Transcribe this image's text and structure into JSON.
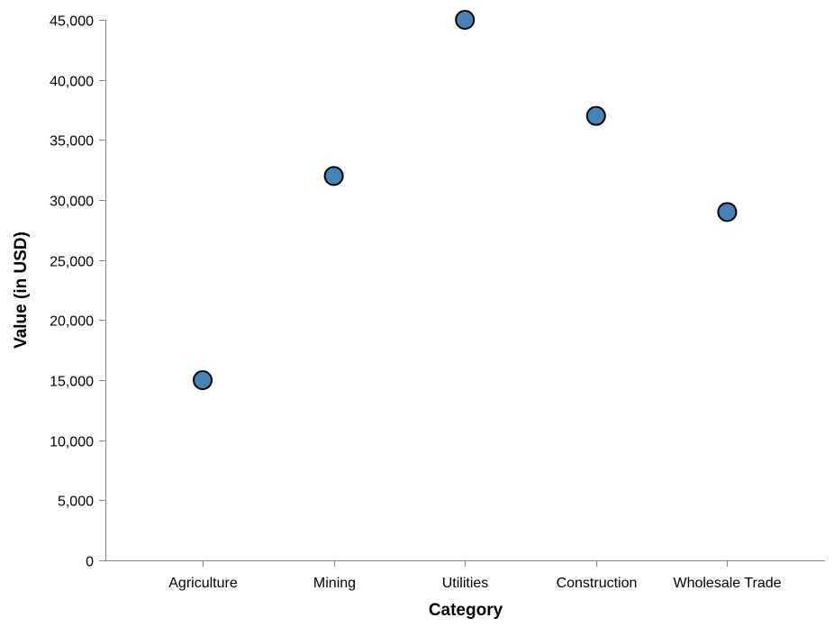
{
  "chart_data": {
    "type": "scatter",
    "title": "",
    "xlabel": "Category",
    "ylabel": "Value (in USD)",
    "categories": [
      "Agriculture",
      "Mining",
      "Utilities",
      "Construction",
      "Wholesale Trade"
    ],
    "values": [
      15000,
      32000,
      45000,
      37000,
      29000
    ],
    "ylim": [
      0,
      45000
    ],
    "yticks": [
      0,
      5000,
      10000,
      15000,
      20000,
      25000,
      30000,
      35000,
      40000,
      45000
    ],
    "ytick_labels": [
      "0",
      "5,000",
      "10,000",
      "15,000",
      "20,000",
      "25,000",
      "30,000",
      "35,000",
      "40,000",
      "45,000"
    ],
    "grid": false,
    "point_color": "#4682b4",
    "point_stroke": "#000000",
    "axis_color": "#888888"
  }
}
